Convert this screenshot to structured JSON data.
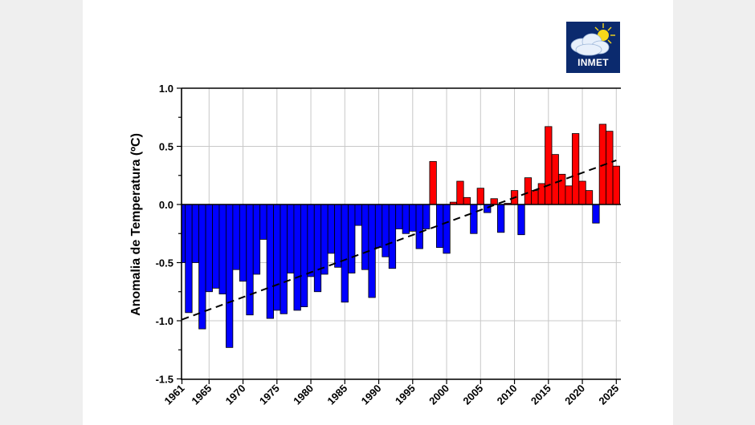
{
  "logo": {
    "text": "INMET",
    "icon": "cloud-sun-icon",
    "bg_color": "#0b2a6e",
    "sun_color": "#f7d81a"
  },
  "colors": {
    "positive": "#ff0000",
    "negative": "#0000ff",
    "bar_edge": "#000000",
    "grid": "#c8c8c8",
    "trend": "#000000",
    "panel_bg": "#ffffff",
    "outer_bg": "#efefef"
  },
  "chart_data": {
    "type": "bar",
    "title": "",
    "xlabel": "",
    "ylabel": "Anomalia de Temperatura (ºC)",
    "ylim": [
      -1.5,
      1.0
    ],
    "xlim": [
      1961,
      2025
    ],
    "yticks": [
      -1.5,
      -1.0,
      -0.5,
      0.0,
      0.5,
      1.0
    ],
    "ytick_labels": [
      "-1.5",
      "-1.0",
      "-0.5",
      "0.0",
      "0.5",
      "1.0"
    ],
    "xticks": [
      1961,
      1965,
      1970,
      1975,
      1980,
      1985,
      1990,
      1995,
      2000,
      2005,
      2010,
      2015,
      2020,
      2025
    ],
    "xtick_labels": [
      "1961",
      "1965",
      "1970",
      "1975",
      "1980",
      "1985",
      "1990",
      "1995",
      "2000",
      "2005",
      "2010",
      "2015",
      "2020",
      "2025"
    ],
    "grid": true,
    "legend": null,
    "categories": [
      1961,
      1962,
      1963,
      1964,
      1965,
      1966,
      1967,
      1968,
      1969,
      1970,
      1971,
      1972,
      1973,
      1974,
      1975,
      1976,
      1977,
      1978,
      1979,
      1980,
      1981,
      1982,
      1983,
      1984,
      1985,
      1986,
      1987,
      1988,
      1989,
      1990,
      1991,
      1992,
      1993,
      1994,
      1995,
      1996,
      1997,
      1998,
      1999,
      2000,
      2001,
      2002,
      2003,
      2004,
      2005,
      2006,
      2007,
      2008,
      2009,
      2010,
      2011,
      2012,
      2013,
      2014,
      2015,
      2016,
      2017,
      2018,
      2019,
      2020,
      2021,
      2022,
      2023,
      2024,
      2025
    ],
    "values": [
      -0.5,
      -0.93,
      -0.5,
      -1.07,
      -0.75,
      -0.72,
      -0.77,
      -1.23,
      -0.56,
      -0.66,
      -0.95,
      -0.6,
      -0.3,
      -0.98,
      -0.91,
      -0.94,
      -0.59,
      -0.91,
      -0.88,
      -0.62,
      -0.75,
      -0.6,
      -0.42,
      -0.54,
      -0.84,
      -0.59,
      -0.18,
      -0.56,
      -0.8,
      -0.37,
      -0.45,
      -0.55,
      -0.21,
      -0.25,
      -0.23,
      -0.38,
      -0.21,
      0.37,
      -0.37,
      -0.42,
      0.02,
      0.2,
      0.06,
      -0.25,
      0.14,
      -0.07,
      0.05,
      -0.24,
      0.01,
      0.12,
      -0.26,
      0.23,
      0.12,
      0.18,
      0.67,
      0.43,
      0.26,
      0.16,
      0.61,
      0.2,
      0.12,
      -0.16,
      0.69,
      0.63,
      0.33
    ],
    "color_rule": "positive values red, negative values blue",
    "trend_line": {
      "style": "dashed",
      "x": [
        1961,
        2025
      ],
      "y": [
        -0.99,
        0.38
      ]
    }
  }
}
